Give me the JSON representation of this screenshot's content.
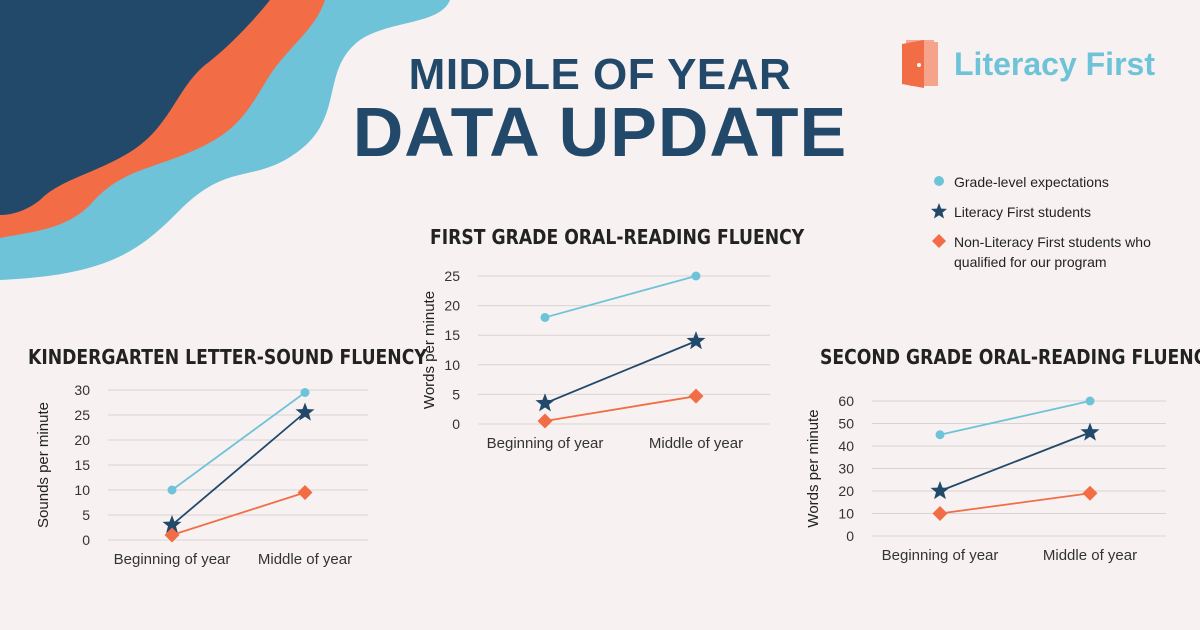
{
  "header": {
    "line1": "MIDDLE OF YEAR",
    "line2": "DATA UPDATE"
  },
  "logo": {
    "text": "Literacy First",
    "icon": "book-door-icon"
  },
  "colors": {
    "navy": "#22496a",
    "orange": "#f26d46",
    "light_blue": "#6fc3d8",
    "background": "#f7f2f1"
  },
  "legend": [
    {
      "marker": "circle",
      "color": "#6fc3d8",
      "label": "Grade-level expectations"
    },
    {
      "marker": "star",
      "color": "#22496a",
      "label": "Literacy First students"
    },
    {
      "marker": "diamond",
      "color": "#f26d46",
      "label": "Non-Literacy First students who qualified for our program"
    }
  ],
  "chart_data": [
    {
      "type": "line",
      "title": "KINDERGARTEN LETTER-SOUND FLUENCY",
      "categories": [
        "Beginning of year",
        "Middle of year"
      ],
      "ylabel": "Sounds per minute",
      "xlabel": "",
      "ylim": [
        0,
        30
      ],
      "yticks": [
        0,
        5,
        10,
        15,
        20,
        25,
        30
      ],
      "grid": true,
      "series": [
        {
          "name": "Grade-level expectations",
          "marker": "circle",
          "color": "#6fc3d8",
          "values": [
            10,
            29.5
          ]
        },
        {
          "name": "Literacy First students",
          "marker": "star",
          "color": "#22496a",
          "values": [
            3,
            25.5
          ]
        },
        {
          "name": "Non-Literacy First students who qualified for our program",
          "marker": "diamond",
          "color": "#f26d46",
          "values": [
            1,
            9.5
          ]
        }
      ]
    },
    {
      "type": "line",
      "title": "FIRST GRADE ORAL-READING FLUENCY",
      "categories": [
        "Beginning of year",
        "Middle of year"
      ],
      "ylabel": "Words per minute",
      "xlabel": "",
      "ylim": [
        0,
        25
      ],
      "yticks": [
        0,
        5,
        10,
        15,
        20,
        25
      ],
      "grid": true,
      "series": [
        {
          "name": "Grade-level expectations",
          "marker": "circle",
          "color": "#6fc3d8",
          "values": [
            18,
            25
          ]
        },
        {
          "name": "Literacy First students",
          "marker": "star",
          "color": "#22496a",
          "values": [
            3.5,
            14
          ]
        },
        {
          "name": "Non-Literacy First students who qualified for our program",
          "marker": "diamond",
          "color": "#f26d46",
          "values": [
            0.5,
            4.7
          ]
        }
      ]
    },
    {
      "type": "line",
      "title": "SECOND GRADE ORAL-READING FLUENCY",
      "categories": [
        "Beginning of year",
        "Middle of year"
      ],
      "ylabel": "Words per minute",
      "xlabel": "",
      "ylim": [
        0,
        60
      ],
      "yticks": [
        0,
        10,
        20,
        30,
        40,
        50,
        60
      ],
      "grid": true,
      "series": [
        {
          "name": "Grade-level expectations",
          "marker": "circle",
          "color": "#6fc3d8",
          "values": [
            45,
            60
          ]
        },
        {
          "name": "Literacy First students",
          "marker": "star",
          "color": "#22496a",
          "values": [
            20,
            46
          ]
        },
        {
          "name": "Non-Literacy First students who qualified for our program",
          "marker": "diamond",
          "color": "#f26d46",
          "values": [
            10,
            19
          ]
        }
      ]
    }
  ]
}
